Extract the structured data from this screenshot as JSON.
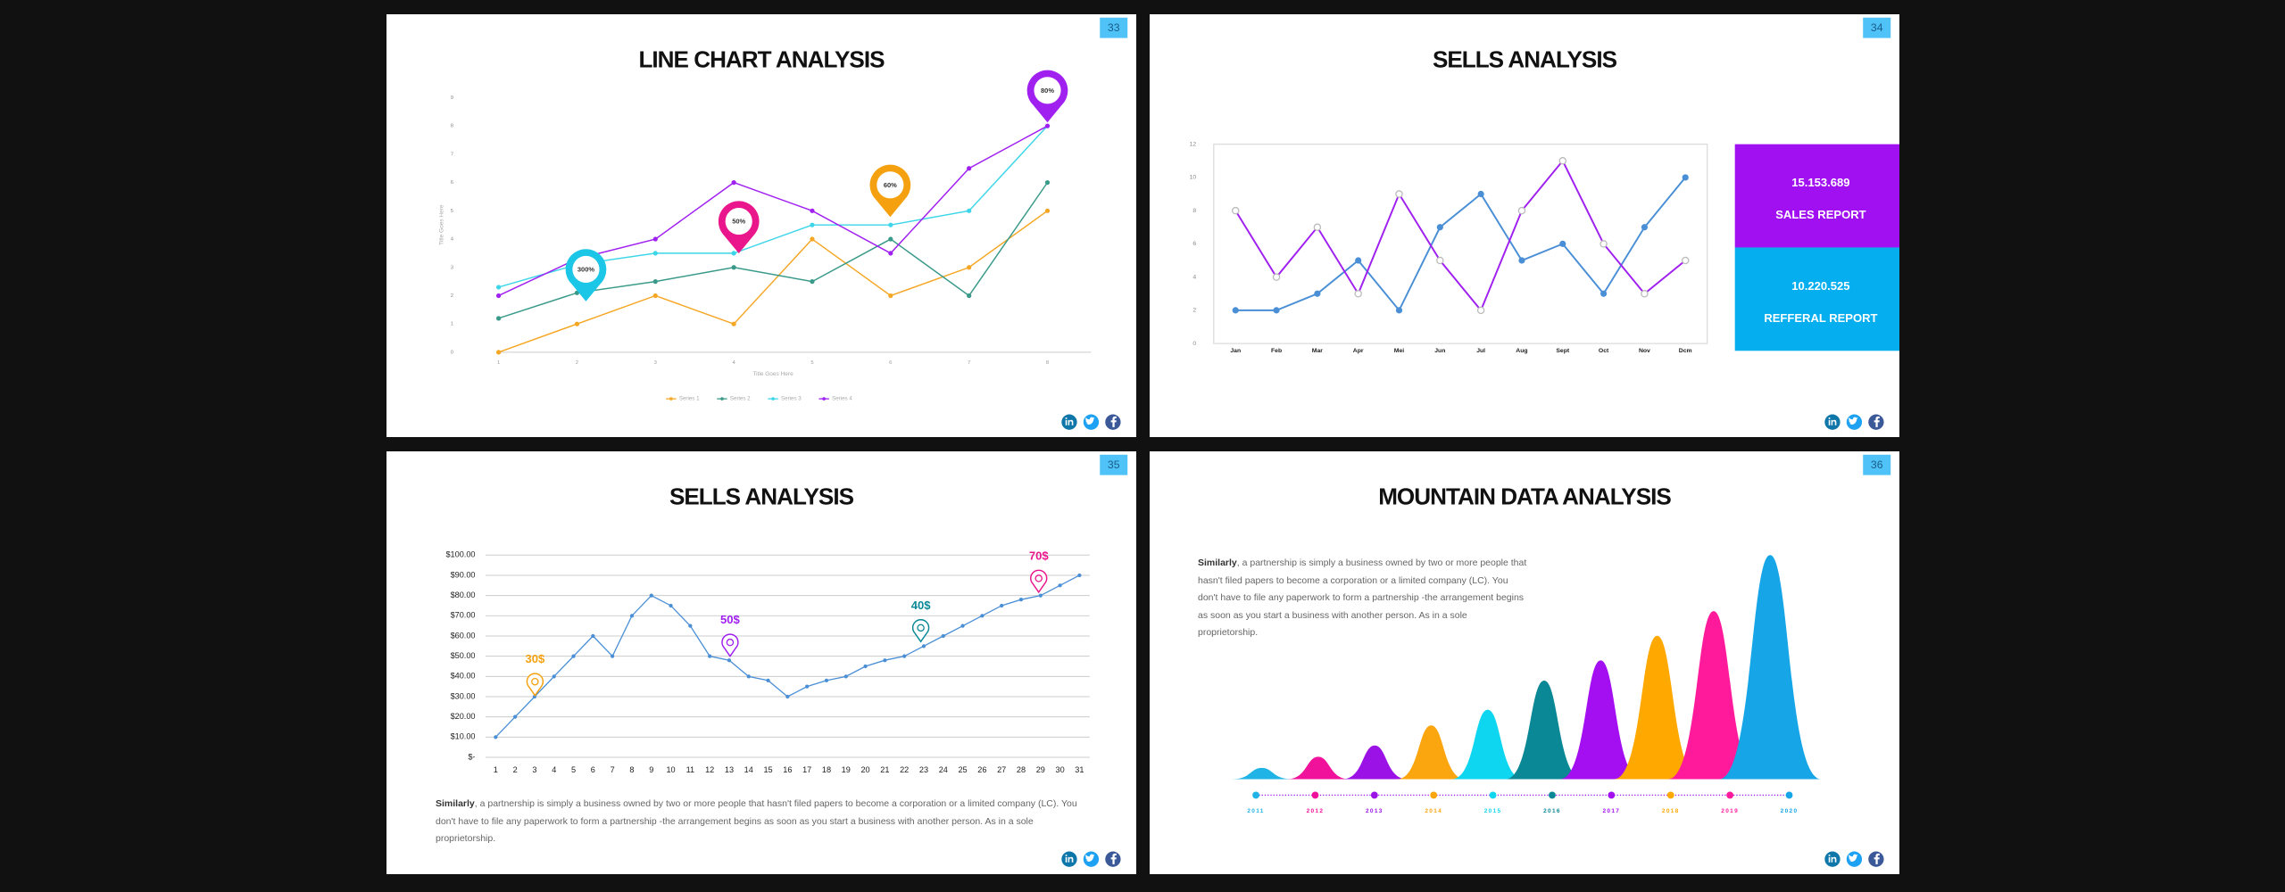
{
  "chart_data": [
    {
      "type": "line",
      "slide_number": "33",
      "title": "LINE CHART ANALYSIS",
      "xlabel": "Title Goes Here",
      "ylabel": "Title Goes Here",
      "categories": [
        "1",
        "2",
        "3",
        "4",
        "5",
        "6",
        "7",
        "8"
      ],
      "ylim": [
        0,
        9
      ],
      "yticks": [
        0,
        1,
        2,
        3,
        4,
        5,
        6,
        7,
        8,
        9
      ],
      "series": [
        {
          "name": "Series 1",
          "color": "#f5a623",
          "values": [
            0,
            1,
            2,
            1,
            4,
            2,
            3,
            5
          ]
        },
        {
          "name": "Series 2",
          "color": "#3a9a8a",
          "values": [
            1.2,
            2.1,
            2.5,
            3,
            2.5,
            4,
            2,
            6
          ]
        },
        {
          "name": "Series 3",
          "color": "#3dd6e8",
          "values": [
            2.3,
            3.1,
            3.5,
            3.5,
            4.5,
            4.5,
            5,
            8
          ]
        },
        {
          "name": "Series 4",
          "color": "#a020f0",
          "values": [
            2,
            3.3,
            4,
            6,
            5,
            3.5,
            6.5,
            8
          ]
        }
      ],
      "annotations": [
        {
          "text": "300%",
          "color": "#1cc6e6"
        },
        {
          "text": "50%",
          "color": "#e9168c"
        },
        {
          "text": "60%",
          "color": "#f5a10f"
        },
        {
          "text": "80%",
          "color": "#a020f0"
        }
      ]
    },
    {
      "type": "line",
      "slide_number": "34",
      "title": "SELLS ANALYSIS",
      "categories": [
        "Jan",
        "Feb",
        "Mar",
        "Apr",
        "Mei",
        "Jun",
        "Jul",
        "Aug",
        "Sept",
        "Oct",
        "Nov",
        "Dcm"
      ],
      "ylim": [
        0,
        12
      ],
      "yticks": [
        0,
        2,
        4,
        6,
        8,
        10,
        12
      ],
      "series": [
        {
          "color": "#4a8fd6",
          "values": [
            2,
            2,
            3,
            5,
            2,
            7,
            9,
            5,
            6,
            3,
            7,
            10
          ]
        },
        {
          "color": "#a020f0",
          "values": [
            8,
            4,
            7,
            3,
            9,
            5,
            2,
            8,
            11,
            6,
            3,
            5
          ]
        }
      ],
      "reports": [
        {
          "value": "15.153.689",
          "label": "SALES REPORT",
          "color": "#a010f0"
        },
        {
          "value": "10.220.525",
          "label": "REFFERAL REPORT",
          "color": "#05aeef"
        }
      ]
    },
    {
      "type": "line",
      "slide_number": "35",
      "title": "SELLS ANALYSIS",
      "grid": true,
      "categories": [
        "1",
        "2",
        "3",
        "4",
        "5",
        "6",
        "7",
        "8",
        "9",
        "10",
        "11",
        "12",
        "13",
        "14",
        "15",
        "16",
        "17",
        "18",
        "19",
        "20",
        "21",
        "22",
        "23",
        "24",
        "25",
        "26",
        "27",
        "28",
        "29",
        "30",
        "31"
      ],
      "ylim": [
        0,
        100
      ],
      "yticks": [
        {
          "value": 0,
          "label": "$-"
        },
        {
          "value": 10,
          "label": "$10.00"
        },
        {
          "value": 20,
          "label": "$20.00"
        },
        {
          "value": 30,
          "label": "$30.00"
        },
        {
          "value": 40,
          "label": "$40.00"
        },
        {
          "value": 50,
          "label": "$50.00"
        },
        {
          "value": 60,
          "label": "$60.00"
        },
        {
          "value": 70,
          "label": "$70.00"
        },
        {
          "value": 80,
          "label": "$80.00"
        },
        {
          "value": 90,
          "label": "$90.00"
        },
        {
          "value": 100,
          "label": "$100.00"
        }
      ],
      "series": [
        {
          "color": "#4a8fd6",
          "values": [
            10,
            20,
            30,
            40,
            50,
            60,
            50,
            70,
            80,
            75,
            65,
            50,
            48,
            40,
            38,
            30,
            35,
            38,
            40,
            45,
            48,
            50,
            55,
            60,
            65,
            70,
            75,
            78,
            80,
            85,
            90
          ]
        }
      ],
      "annotations": [
        {
          "text": "30$",
          "color": "#f5a10f"
        },
        {
          "text": "50$",
          "color": "#a020f0"
        },
        {
          "text": "40$",
          "color": "#0a8896"
        },
        {
          "text": "70$",
          "color": "#e9168c"
        }
      ],
      "paragraph": {
        "lead": "Similarly",
        "text": ", a partnership is simply a business owned by two or more people that hasn't filed papers to become a corporation or a limited company (LC). You don't have to file any paperwork to form a partnership -the arrangement begins as soon as you start a business with another person. As in a sole proprietorship."
      }
    },
    {
      "type": "mountain",
      "slide_number": "36",
      "title": "MOUNTAIN DATA ANALYSIS",
      "categories": [
        "2011",
        "2012",
        "2013",
        "2014",
        "2015",
        "2016",
        "2017",
        "2018",
        "2019",
        "2020"
      ],
      "values": [
        5,
        10,
        15,
        24,
        31,
        44,
        53,
        64,
        75,
        100
      ],
      "colors": [
        "#1fb3e6",
        "#f0129a",
        "#9a12e6",
        "#fba50f",
        "#0fd6f0",
        "#0a8896",
        "#a30ff0",
        "#ffa800",
        "#ff1a9c",
        "#16a6e8"
      ],
      "paragraph": {
        "lead": "Similarly",
        "text": ", a partnership is simply a business owned by two or more people that hasn't filed papers to become a corporation or a limited company (LC). You don't have to file any paperwork to form a partnership -the arrangement begins as soon as you start a business with another person. As in a sole proprietorship."
      }
    }
  ]
}
